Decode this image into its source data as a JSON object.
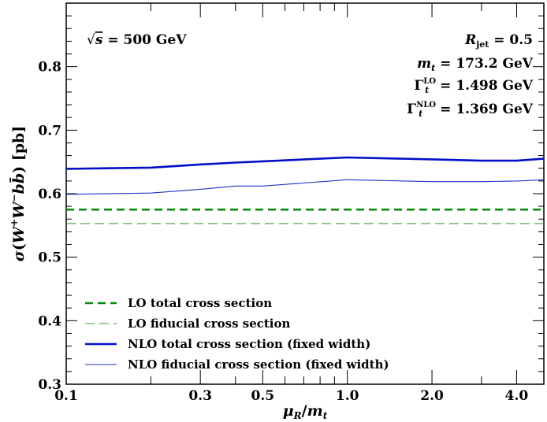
{
  "chart_data": {
    "type": "line",
    "xlabel": "μR/mt",
    "ylabel": "σ(W⁺W⁻bb̄) [pb]",
    "xscale": "log",
    "xlim": [
      0.1,
      5.0
    ],
    "ylim": [
      0.3,
      0.9
    ],
    "xticks": [
      0.1,
      0.3,
      0.5,
      1.0,
      2.0,
      4.0
    ],
    "xtick_labels": [
      "0.1",
      "0.3",
      "0.5",
      "1.0",
      "2.0",
      "4.0"
    ],
    "yticks": [
      0.3,
      0.4,
      0.5,
      0.6,
      0.7,
      0.8
    ],
    "ytick_labels": [
      "0.3",
      "0.4",
      "0.5",
      "0.6",
      "0.7",
      "0.8"
    ],
    "grid": false,
    "legend_position": "bottom-left",
    "annotations": {
      "sqrt_s": "√s = 500 GeV",
      "rjet": "Rjet = 0.5",
      "mt": "mt = 173.2 GeV",
      "gamma_lo": "ΓtLO = 1.498 GeV",
      "gamma_nlo": "ΓtNLO = 1.369 GeV"
    },
    "series": [
      {
        "name": "LO total cross section",
        "style": "dashed",
        "width": "thick",
        "color": "#0a8a0a",
        "x": [
          0.1,
          5.0
        ],
        "y": [
          0.575,
          0.575
        ]
      },
      {
        "name": "LO fiducial cross section",
        "style": "dashed",
        "width": "thin",
        "color": "#3aa03a",
        "x": [
          0.1,
          5.0
        ],
        "y": [
          0.553,
          0.553
        ]
      },
      {
        "name": "NLO total cross section (fixed width)",
        "style": "solid",
        "width": "thick",
        "color": "#0010c8",
        "x": [
          0.1,
          0.2,
          0.3,
          0.4,
          0.5,
          1.0,
          2.0,
          3.0,
          4.0,
          5.0
        ],
        "y": [
          0.639,
          0.641,
          0.646,
          0.649,
          0.651,
          0.657,
          0.654,
          0.652,
          0.652,
          0.655
        ]
      },
      {
        "name": "NLO fiducial cross section (fixed width)",
        "style": "solid",
        "width": "thin",
        "color": "#2030c8",
        "x": [
          0.1,
          0.2,
          0.3,
          0.4,
          0.5,
          1.0,
          2.0,
          3.0,
          4.0,
          5.0
        ],
        "y": [
          0.599,
          0.601,
          0.607,
          0.612,
          0.612,
          0.622,
          0.619,
          0.619,
          0.62,
          0.622
        ]
      }
    ]
  }
}
